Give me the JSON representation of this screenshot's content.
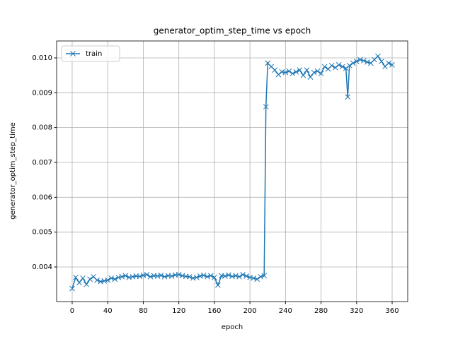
{
  "chart_data": {
    "type": "line",
    "title": "generator_optim_step_time vs epoch",
    "x_label": "epoch",
    "y_label": "generator_optim_step_time",
    "x": [
      0,
      4,
      8,
      12,
      16,
      20,
      24,
      28,
      32,
      36,
      40,
      44,
      48,
      52,
      56,
      60,
      64,
      68,
      72,
      76,
      80,
      84,
      88,
      92,
      96,
      100,
      104,
      108,
      112,
      116,
      120,
      124,
      128,
      132,
      136,
      140,
      144,
      148,
      152,
      156,
      160,
      164,
      168,
      172,
      176,
      180,
      184,
      188,
      192,
      196,
      200,
      204,
      208,
      212,
      216,
      218,
      220,
      224,
      228,
      232,
      236,
      240,
      244,
      248,
      252,
      256,
      260,
      264,
      268,
      272,
      276,
      280,
      284,
      288,
      292,
      296,
      300,
      304,
      308,
      310,
      312,
      316,
      320,
      324,
      328,
      332,
      336,
      340,
      344,
      348,
      352,
      356,
      360
    ],
    "series": [
      {
        "name": "train",
        "color": "#1f77b4",
        "marker": "x",
        "values": [
          0.00338,
          0.0037,
          0.00355,
          0.00368,
          0.0035,
          0.00365,
          0.00372,
          0.00362,
          0.00358,
          0.0036,
          0.00362,
          0.00368,
          0.00365,
          0.0037,
          0.00372,
          0.00375,
          0.0037,
          0.00372,
          0.00374,
          0.00373,
          0.00376,
          0.00378,
          0.00372,
          0.00375,
          0.00374,
          0.00376,
          0.00372,
          0.00375,
          0.00374,
          0.00377,
          0.00378,
          0.00375,
          0.00373,
          0.00372,
          0.00368,
          0.0037,
          0.00374,
          0.00376,
          0.00372,
          0.00375,
          0.0037,
          0.00348,
          0.00375,
          0.00374,
          0.00377,
          0.00373,
          0.00375,
          0.00372,
          0.00378,
          0.00374,
          0.0037,
          0.00368,
          0.00365,
          0.00372,
          0.00375,
          0.0086,
          0.00985,
          0.00975,
          0.00965,
          0.00952,
          0.0096,
          0.00958,
          0.00962,
          0.00955,
          0.0096,
          0.00965,
          0.0095,
          0.00965,
          0.00945,
          0.00958,
          0.00962,
          0.00955,
          0.00975,
          0.00968,
          0.00978,
          0.00972,
          0.0098,
          0.00975,
          0.0097,
          0.00888,
          0.00978,
          0.00985,
          0.0099,
          0.00995,
          0.00992,
          0.00988,
          0.00985,
          0.00995,
          0.01005,
          0.0099,
          0.00975,
          0.00985,
          0.0098
        ]
      }
    ],
    "xlim": [
      -17.5,
      377.5
    ],
    "xticks": [
      0,
      40,
      80,
      120,
      160,
      200,
      240,
      280,
      320,
      360
    ],
    "ylim": [
      0.003007,
      0.010486
    ],
    "yticks": [
      0.004,
      0.005,
      0.006,
      0.007,
      0.008,
      0.009,
      {
        "value": 0.01,
        "label": "0.010"
      }
    ],
    "grid": true,
    "legend": "upper left"
  }
}
